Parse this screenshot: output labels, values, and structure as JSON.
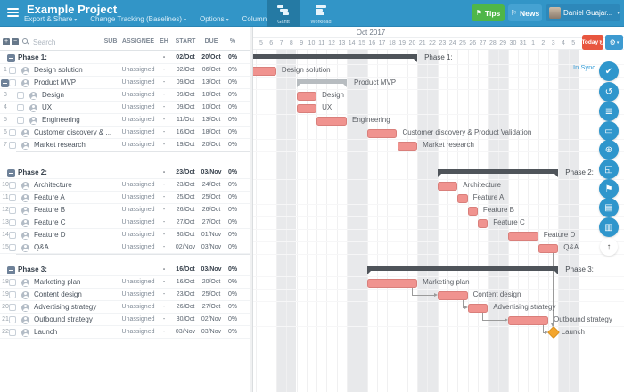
{
  "topbar": {
    "title": "Example Project",
    "menus": [
      {
        "label": "Export & Share"
      },
      {
        "label": "Change Tracking (Baselines)"
      },
      {
        "label": "Options"
      },
      {
        "label": "Columns"
      }
    ],
    "tabs": [
      {
        "label": "Gantt",
        "active": true
      },
      {
        "label": "Workload",
        "active": false
      }
    ],
    "tips_label": "Tips",
    "news_label": "News",
    "user_label": "Daniel Guajar...",
    "colors": {
      "bar": "#3295c7",
      "tab_active": "#257aa4",
      "tips": "#4fb648",
      "news": "#45a2d2",
      "user": "#2d88ba"
    }
  },
  "table": {
    "search_placeholder": "Search",
    "columns": [
      "SUB",
      "ASSIGNEE",
      "EH",
      "START",
      "DUE",
      "%"
    ]
  },
  "timeline": {
    "month_label": "Oct 2017",
    "days": [
      4,
      5,
      6,
      7,
      8,
      9,
      10,
      11,
      12,
      13,
      14,
      15,
      16,
      17,
      18,
      19,
      20,
      21,
      22,
      23,
      24,
      25,
      26,
      27,
      28,
      29,
      30,
      31,
      1,
      2,
      3,
      4,
      5
    ],
    "weekend_offsets": [
      3,
      4,
      10,
      11,
      17,
      18,
      24,
      25,
      31,
      32
    ],
    "today_label": "Today",
    "sync_label": "In Sync"
  },
  "rows": [
    {
      "kind": "phase",
      "name": "Phase 1:",
      "eh": "-",
      "start": "02/Oct",
      "due": "20/Oct",
      "pct": "0%",
      "d0": 2,
      "d1": 20
    },
    {
      "kind": "task",
      "num": "1",
      "name": "Design solution",
      "assignee": "Unassigned",
      "eh": "-",
      "start": "02/Oct",
      "due": "06/Oct",
      "pct": "0%",
      "d0": 2,
      "d1": 6
    },
    {
      "kind": "parent",
      "name": "Product MVP",
      "assignee": "Unassigned",
      "eh": "-",
      "start": "09/Oct",
      "due": "13/Oct",
      "pct": "0%",
      "d0": 9,
      "d1": 13
    },
    {
      "kind": "subtask",
      "num": "3",
      "name": "Design",
      "assignee": "Unassigned",
      "eh": "-",
      "start": "09/Oct",
      "due": "10/Oct",
      "pct": "0%",
      "d0": 9,
      "d1": 10
    },
    {
      "kind": "subtask",
      "num": "4",
      "name": "UX",
      "assignee": "Unassigned",
      "eh": "-",
      "start": "09/Oct",
      "due": "10/Oct",
      "pct": "0%",
      "d0": 9,
      "d1": 10
    },
    {
      "kind": "subtask",
      "num": "5",
      "name": "Engineering",
      "assignee": "Unassigned",
      "eh": "-",
      "start": "11/Oct",
      "due": "13/Oct",
      "pct": "0%",
      "d0": 11,
      "d1": 13
    },
    {
      "kind": "task",
      "num": "6",
      "name": "Customer discovery & ...",
      "chart_label": "Customer discovery & Product Validation",
      "assignee": "Unassigned",
      "eh": "-",
      "start": "16/Oct",
      "due": "18/Oct",
      "pct": "0%",
      "d0": 16,
      "d1": 18
    },
    {
      "kind": "task",
      "num": "7",
      "name": "Market research",
      "assignee": "Unassigned",
      "eh": "-",
      "start": "19/Oct",
      "due": "20/Oct",
      "pct": "0%",
      "d0": 19,
      "d1": 20
    },
    {
      "kind": "gap",
      "h": 17
    },
    {
      "kind": "phase",
      "name": "Phase 2:",
      "eh": "-",
      "start": "23/Oct",
      "due": "03/Nov",
      "pct": "0%",
      "d0": 23,
      "d1": 34
    },
    {
      "kind": "task",
      "num": "10",
      "name": "Architecture",
      "assignee": "Unassigned",
      "eh": "-",
      "start": "23/Oct",
      "due": "24/Oct",
      "pct": "0%",
      "d0": 23,
      "d1": 24
    },
    {
      "kind": "task",
      "num": "11",
      "name": "Feature A",
      "assignee": "Unassigned",
      "eh": "-",
      "start": "25/Oct",
      "due": "25/Oct",
      "pct": "0%",
      "d0": 25,
      "d1": 25
    },
    {
      "kind": "task",
      "num": "12",
      "name": "Feature B",
      "assignee": "Unassigned",
      "eh": "-",
      "start": "26/Oct",
      "due": "26/Oct",
      "pct": "0%",
      "d0": 26,
      "d1": 26
    },
    {
      "kind": "task",
      "num": "13",
      "name": "Feature C",
      "assignee": "Unassigned",
      "eh": "-",
      "start": "27/Oct",
      "due": "27/Oct",
      "pct": "0%",
      "d0": 27,
      "d1": 27
    },
    {
      "kind": "task",
      "num": "14",
      "name": "Feature D",
      "assignee": "Unassigned",
      "eh": "-",
      "start": "30/Oct",
      "due": "01/Nov",
      "pct": "0%",
      "d0": 30,
      "d1": 32
    },
    {
      "kind": "task",
      "num": "15",
      "name": "Q&A",
      "assignee": "Unassigned",
      "eh": "-",
      "start": "02/Nov",
      "due": "03/Nov",
      "pct": "0%",
      "d0": 33,
      "d1": 34
    },
    {
      "kind": "gap",
      "h": 11
    },
    {
      "kind": "phase",
      "name": "Phase 3:",
      "eh": "-",
      "start": "16/Oct",
      "due": "03/Nov",
      "pct": "0%",
      "d0": 16,
      "d1": 34
    },
    {
      "kind": "task",
      "num": "18",
      "name": "Marketing plan",
      "assignee": "Unassigned",
      "eh": "-",
      "start": "16/Oct",
      "due": "20/Oct",
      "pct": "0%",
      "d0": 16,
      "d1": 20
    },
    {
      "kind": "task",
      "num": "19",
      "name": "Content design",
      "assignee": "Unassigned",
      "eh": "-",
      "start": "23/Oct",
      "due": "25/Oct",
      "pct": "0%",
      "d0": 23,
      "d1": 25
    },
    {
      "kind": "task",
      "num": "20",
      "name": "Advertising strategy",
      "assignee": "Unassigned",
      "eh": "-",
      "start": "26/Oct",
      "due": "27/Oct",
      "pct": "0%",
      "d0": 26,
      "d1": 27
    },
    {
      "kind": "task",
      "num": "21",
      "name": "Outbound strategy",
      "assignee": "Unassigned",
      "eh": "-",
      "start": "30/Oct",
      "due": "02/Nov",
      "pct": "0%",
      "d0": 30,
      "d1": 33
    },
    {
      "kind": "milestone",
      "num": "22",
      "name": "Launch",
      "assignee": "Unassigned",
      "eh": "-",
      "start": "03/Nov",
      "due": "03/Nov",
      "pct": "0%",
      "d0": 34,
      "d1": 34
    }
  ],
  "connectors": [
    {
      "from": "Marketing plan",
      "to": "Content design",
      "type": "elbow"
    },
    {
      "from": "Content design",
      "to": "Advertising strategy",
      "type": "elbow"
    },
    {
      "from": "Advertising strategy",
      "to": "Outbound strategy",
      "type": "elbow"
    },
    {
      "from": "Outbound strategy",
      "to": "Launch",
      "type": "elbow"
    },
    {
      "from": "Q&A",
      "to": "Launch",
      "type": "down"
    }
  ],
  "sidebar_buttons": [
    {
      "name": "sync-check",
      "glyph": "✔"
    },
    {
      "name": "history-undo",
      "glyph": "↺"
    },
    {
      "name": "critical-path",
      "glyph": "≣"
    },
    {
      "name": "baselines",
      "glyph": "▭"
    },
    {
      "name": "zoom-search",
      "glyph": "⊕"
    },
    {
      "name": "fit-screen",
      "glyph": "◱"
    },
    {
      "name": "filter-flag",
      "glyph": "⚑"
    },
    {
      "name": "copy-project",
      "glyph": "▤"
    },
    {
      "name": "overview-map",
      "glyph": "▥"
    },
    {
      "name": "scroll-top",
      "glyph": "↑",
      "style": "light"
    }
  ],
  "chart_colors": {
    "task_bar": "#f0938f",
    "task_border": "#d97f7b",
    "phase_bar": "#4f545a",
    "summary_bar": "#b7bcc0",
    "milestone": "#f3a52d",
    "weekend": "#e8e9eb",
    "connector": "#9b9b9b",
    "today_button": "#e8563f",
    "sync_text": "#389ed8"
  }
}
